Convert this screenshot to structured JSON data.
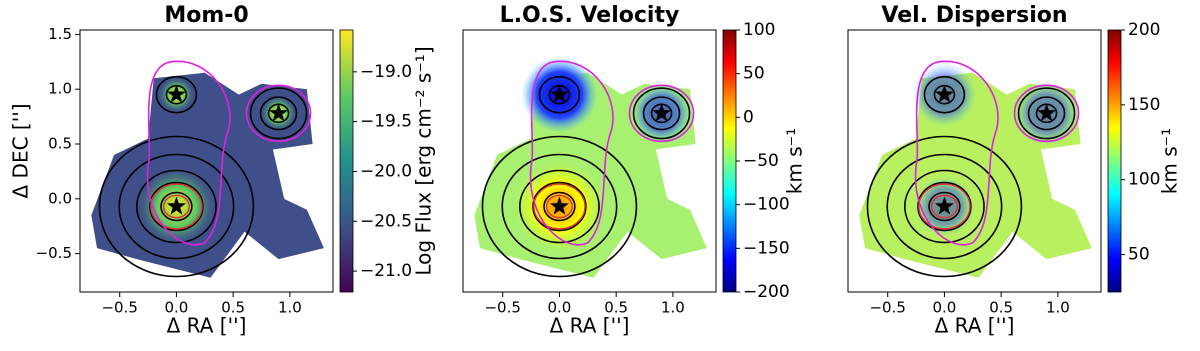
{
  "chart_data": [
    {
      "type": "heatmap",
      "title": "Mom-0",
      "xlabel": "Δ RA ['']",
      "ylabel": "Δ DEC ['']",
      "colorbar_label": "Log Flux [erg cm⁻² s⁻¹]",
      "colormap": "viridis",
      "xlim": [
        -0.85,
        1.38
      ],
      "ylim": [
        -0.85,
        1.54
      ],
      "xticks": [
        {
          "value": -0.5,
          "label": "−0.5"
        },
        {
          "value": 0,
          "label": "0.0"
        },
        {
          "value": 0.5,
          "label": "0.5"
        },
        {
          "value": 1,
          "label": "1.0"
        }
      ],
      "yticks": [
        {
          "value": 1.5,
          "label": "1.5"
        },
        {
          "value": 1,
          "label": "1.0"
        },
        {
          "value": 0.5,
          "label": "0.5"
        },
        {
          "value": 0,
          "label": "0.0"
        },
        {
          "value": -0.5,
          "label": "−0.5"
        }
      ],
      "clim": [
        -21.21,
        -18.58
      ],
      "cticks": [
        {
          "value": -19,
          "label": "−19.0"
        },
        {
          "value": -19.5,
          "label": "−19.5"
        },
        {
          "value": -20,
          "label": "−20.0"
        },
        {
          "value": -20.5,
          "label": "−20.5"
        },
        {
          "value": -21,
          "label": "−21.0"
        }
      ],
      "stars": {
        "x": [
          0,
          0.9,
          0
        ],
        "y": [
          0.95,
          0.78,
          -0.07
        ]
      }
    },
    {
      "type": "heatmap",
      "title": "L.O.S. Velocity",
      "xlabel": "Δ RA ['']",
      "colorbar_label": "km s⁻¹",
      "colormap": "jet",
      "xlim": [
        -0.85,
        1.38
      ],
      "ylim": [
        -0.85,
        1.54
      ],
      "xticks": [
        {
          "value": -0.5,
          "label": "−0.5"
        },
        {
          "value": 0,
          "label": "0.0"
        },
        {
          "value": 0.5,
          "label": "0.5"
        },
        {
          "value": 1,
          "label": "1.0"
        }
      ],
      "clim": [
        -200,
        100
      ],
      "cticks": [
        100,
        50,
        0,
        {
          "value": -50,
          "label": "−50"
        },
        {
          "value": -100,
          "label": "−100"
        },
        {
          "value": -150,
          "label": "−150"
        },
        {
          "value": -200,
          "label": "−200"
        }
      ],
      "stars": {
        "x": [
          0,
          0.9,
          0
        ],
        "y": [
          0.95,
          0.78,
          -0.07
        ]
      }
    },
    {
      "type": "heatmap",
      "title": "Vel. Dispersion",
      "xlabel": "Δ RA ['']",
      "colorbar_label": "km s⁻¹",
      "colormap": "jet",
      "xlim": [
        -0.85,
        1.38
      ],
      "ylim": [
        -0.85,
        1.54
      ],
      "xticks": [
        {
          "value": -0.5,
          "label": "−0.5"
        },
        {
          "value": 0,
          "label": "0.0"
        },
        {
          "value": 0.5,
          "label": "0.5"
        },
        {
          "value": 1,
          "label": "1.0"
        }
      ],
      "clim": [
        25,
        200
      ],
      "cticks": [
        200,
        150,
        100,
        50
      ],
      "stars": {
        "x": [
          0,
          0.9,
          0
        ],
        "y": [
          0.95,
          0.78,
          -0.07
        ]
      }
    }
  ]
}
